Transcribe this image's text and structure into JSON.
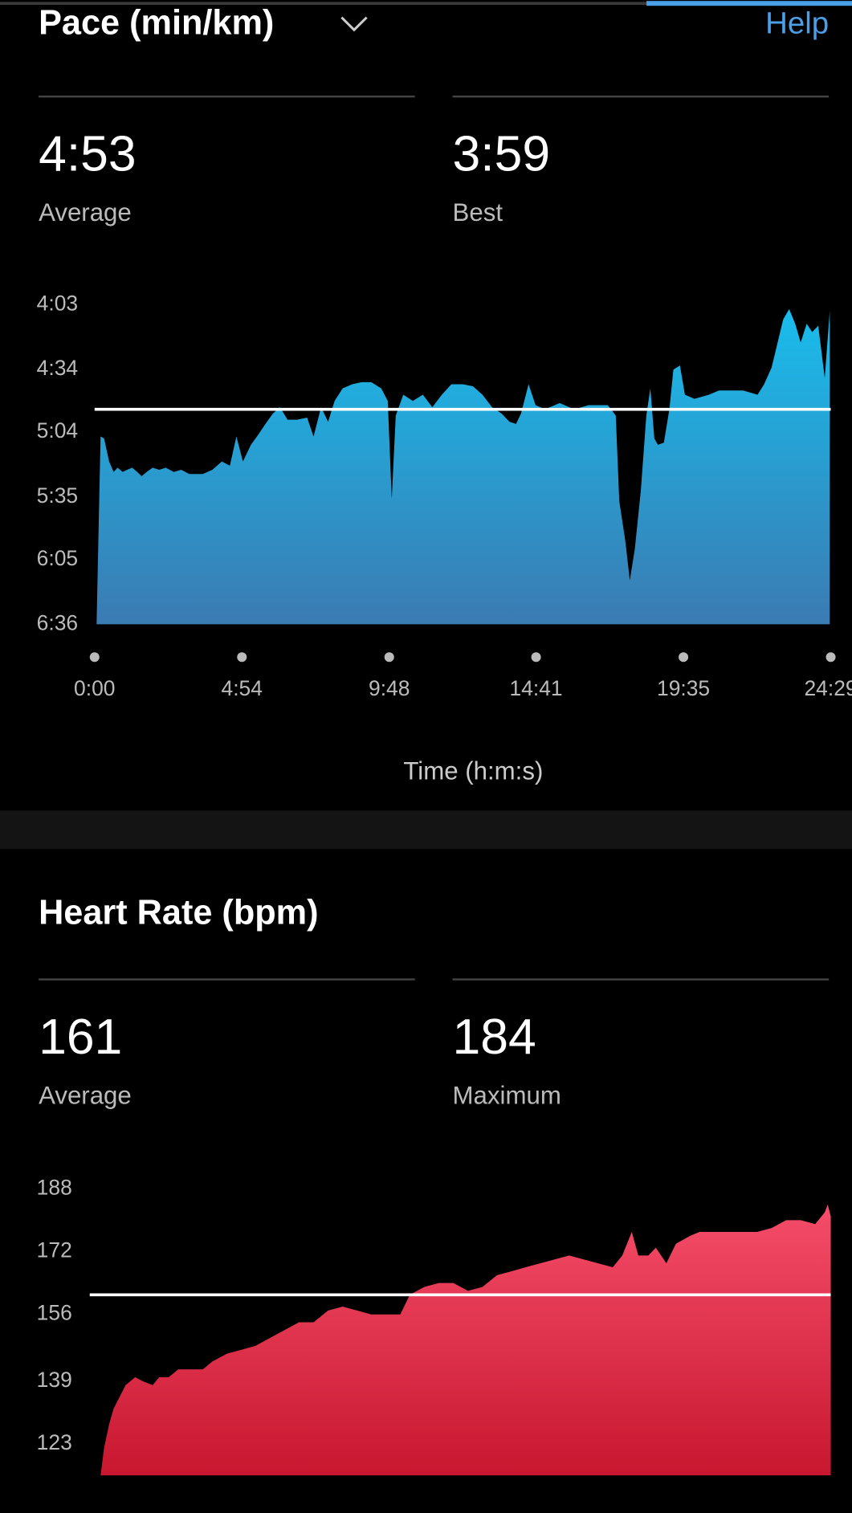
{
  "header": {
    "help": "Help"
  },
  "chart_data": [
    {
      "type": "area",
      "title": "Pace (min/km)",
      "stats": [
        {
          "name": "Average",
          "value": 293,
          "value_label": "4:53"
        },
        {
          "name": "Best",
          "value": 239,
          "value_label": "3:59"
        }
      ],
      "xlabel": "Time (h:m:s)",
      "xlim": [
        0,
        1469
      ],
      "xticks": [
        {
          "value": 0,
          "label": "0:00"
        },
        {
          "value": 294,
          "label": "4:54"
        },
        {
          "value": 588,
          "label": "9:48"
        },
        {
          "value": 881,
          "label": "14:41"
        },
        {
          "value": 1175,
          "label": "19:35"
        },
        {
          "value": 1469,
          "label": "24:29"
        }
      ],
      "ylim": [
        396,
        243
      ],
      "yticks": [
        {
          "value": 243,
          "label": "4:03"
        },
        {
          "value": 274,
          "label": "4:34"
        },
        {
          "value": 304,
          "label": "5:04"
        },
        {
          "value": 335,
          "label": "5:35"
        },
        {
          "value": 365,
          "label": "6:05"
        },
        {
          "value": 396,
          "label": "6:36"
        }
      ],
      "color_top": "#19bdec",
      "color_bottom": "#3a7bb2",
      "x": [
        4,
        12,
        19,
        29,
        38,
        46,
        56,
        65,
        75,
        85,
        94,
        104,
        116,
        129,
        142,
        158,
        173,
        189,
        216,
        235,
        254,
        270,
        283,
        296,
        312,
        327,
        341,
        356,
        370,
        385,
        404,
        424,
        437,
        452,
        466,
        479,
        495,
        514,
        533,
        552,
        572,
        585,
        593,
        601,
        616,
        635,
        655,
        674,
        693,
        712,
        735,
        755,
        774,
        793,
        812,
        828,
        841,
        851,
        866,
        880,
        899,
        928,
        957,
        986,
        1024,
        1040,
        1047,
        1059,
        1068,
        1078,
        1090,
        1101,
        1109,
        1117,
        1124,
        1136,
        1147,
        1155,
        1168,
        1178,
        1197,
        1226,
        1246,
        1294,
        1323,
        1336,
        1351,
        1363,
        1374,
        1386,
        1398,
        1409,
        1421,
        1432,
        1444,
        1457,
        1467
      ],
      "values": [
        396,
        306,
        307,
        318,
        323,
        321,
        323,
        322,
        321,
        323,
        325,
        323,
        321,
        322,
        321,
        323,
        322,
        324,
        324,
        322,
        318,
        320,
        306,
        318,
        310,
        305,
        300,
        295,
        292,
        298,
        298,
        297,
        306,
        292,
        299,
        289,
        283,
        281,
        280,
        280,
        283,
        289,
        336,
        296,
        286,
        289,
        286,
        292,
        286,
        281,
        281,
        282,
        286,
        292,
        295,
        299,
        300,
        295,
        281,
        291,
        293,
        290,
        293,
        291,
        291,
        296,
        337,
        356,
        375,
        360,
        332,
        296,
        283,
        307,
        310,
        309,
        293,
        274,
        272,
        286,
        288,
        286,
        284,
        284,
        286,
        281,
        273,
        261,
        250,
        245,
        252,
        261,
        252,
        256,
        253,
        278,
        246
      ]
    },
    {
      "type": "area",
      "title": "Heart Rate (bpm)",
      "stats": [
        {
          "name": "Average",
          "value": 161
        },
        {
          "name": "Maximum",
          "value": 184
        }
      ],
      "xlim": [
        0,
        1469
      ],
      "ylim": [
        115,
        188
      ],
      "yticks": [
        188,
        172,
        156,
        139,
        123
      ],
      "color_top": "#f54d6a",
      "color_bottom": "#c8172f",
      "x": [
        12,
        19,
        29,
        38,
        50,
        62,
        81,
        96,
        116,
        129,
        148,
        167,
        187,
        216,
        235,
        264,
        293,
        321,
        350,
        379,
        408,
        437,
        466,
        495,
        524,
        552,
        610,
        629,
        658,
        687,
        716,
        745,
        774,
        803,
        832,
        860,
        889,
        918,
        947,
        976,
        1005,
        1034,
        1053,
        1072,
        1085,
        1105,
        1120,
        1141,
        1160,
        1188,
        1207,
        1236,
        1265,
        1293,
        1322,
        1351,
        1380,
        1409,
        1438,
        1457,
        1463,
        1469
      ],
      "values": [
        115,
        122,
        128,
        132,
        135,
        138,
        140,
        139,
        138,
        140,
        140,
        142,
        142,
        142,
        144,
        146,
        147,
        148,
        150,
        152,
        154,
        154,
        157,
        158,
        157,
        156,
        156,
        161,
        163,
        164,
        164,
        162,
        163,
        166,
        167,
        168,
        169,
        170,
        171,
        170,
        169,
        168,
        171,
        177,
        171,
        171,
        173,
        169,
        174,
        176,
        177,
        177,
        177,
        177,
        177,
        178,
        180,
        180,
        179,
        182,
        184,
        181
      ]
    }
  ]
}
